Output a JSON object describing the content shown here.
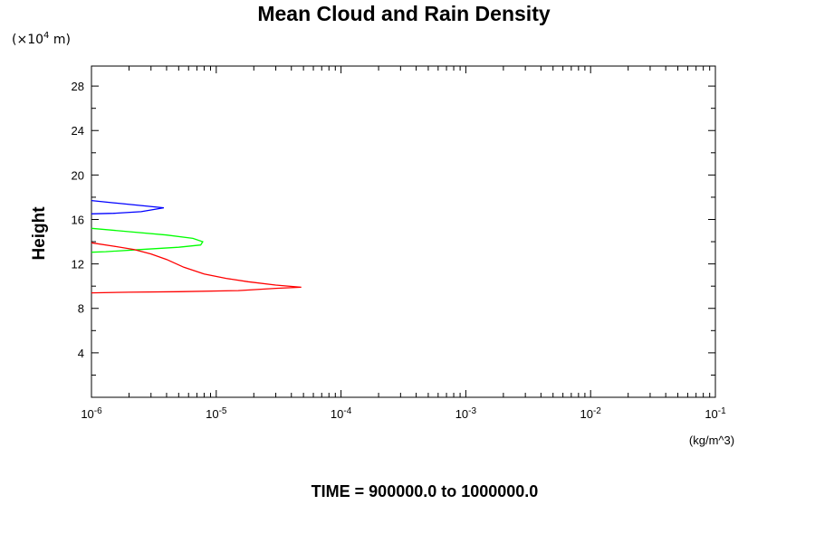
{
  "chart_data": {
    "type": "line",
    "title": "Mean Cloud and Rain Density",
    "ylabel": "Height",
    "y_multiplier": {
      "open": "(×10",
      "exp": "4",
      "close": " m)"
    },
    "xunit": "(kg/m^3)",
    "footer": "TIME = 900000.0 to 1000000.0",
    "xscale": "log",
    "xlim": [
      1e-06,
      0.1
    ],
    "ylim": [
      0,
      29.8
    ],
    "y_ticks": [
      4,
      8,
      12,
      16,
      20,
      24,
      28
    ],
    "x_ticks": [
      {
        "value": 1e-06,
        "base": "10",
        "exp": "-6"
      },
      {
        "value": 1e-05,
        "base": "10",
        "exp": "-5"
      },
      {
        "value": 0.0001,
        "base": "10",
        "exp": "-4"
      },
      {
        "value": 0.001,
        "base": "10",
        "exp": "-3"
      },
      {
        "value": 0.01,
        "base": "10",
        "exp": "-2"
      },
      {
        "value": 0.1,
        "base": "10",
        "exp": "-1"
      }
    ],
    "series": [
      {
        "color": "#0000ff",
        "points": [
          [
            1e-06,
            17.7
          ],
          [
            1.5e-06,
            17.5
          ],
          [
            2.5e-06,
            17.25
          ],
          [
            3.8e-06,
            17.05
          ],
          [
            2.5e-06,
            16.7
          ],
          [
            1.5e-06,
            16.55
          ],
          [
            1e-06,
            16.5
          ]
        ]
      },
      {
        "color": "#00ff00",
        "points": [
          [
            1e-06,
            15.2
          ],
          [
            2e-06,
            14.9
          ],
          [
            4e-06,
            14.6
          ],
          [
            6.5e-06,
            14.3
          ],
          [
            7.8e-06,
            14.0
          ],
          [
            7.5e-06,
            13.7
          ],
          [
            5e-06,
            13.5
          ],
          [
            2.5e-06,
            13.3
          ],
          [
            1.3e-06,
            13.1
          ],
          [
            1e-06,
            13.05
          ]
        ]
      },
      {
        "color": "#ff0000",
        "points": [
          [
            1e-06,
            13.9
          ],
          [
            1.5e-06,
            13.6
          ],
          [
            2.2e-06,
            13.3
          ],
          [
            3e-06,
            12.9
          ],
          [
            4e-06,
            12.4
          ],
          [
            5.5e-06,
            11.7
          ],
          [
            8e-06,
            11.1
          ],
          [
            1.2e-05,
            10.7
          ],
          [
            1.8e-05,
            10.4
          ],
          [
            3e-05,
            10.1
          ],
          [
            4.8e-05,
            9.9
          ],
          [
            3e-05,
            9.8
          ],
          [
            1.5e-05,
            9.6
          ],
          [
            5e-06,
            9.5
          ],
          [
            2e-06,
            9.45
          ],
          [
            1e-06,
            9.4
          ]
        ]
      }
    ],
    "grid": false,
    "legend": "none"
  }
}
